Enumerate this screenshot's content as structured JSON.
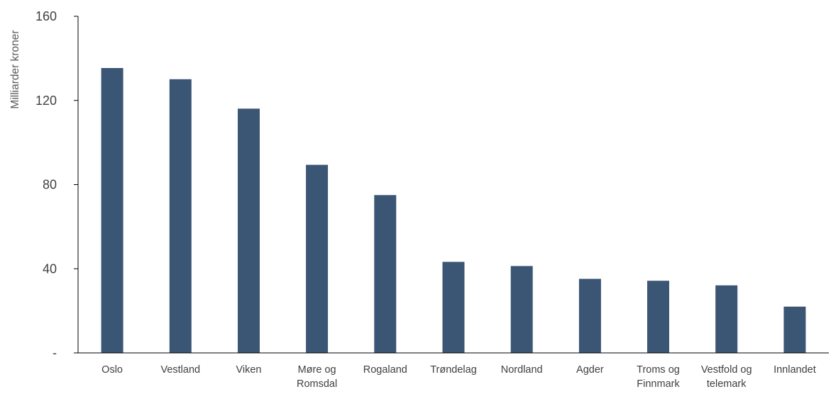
{
  "chart_data": {
    "type": "bar",
    "ylabel": "Milliarder kroner",
    "ylim": [
      0,
      160
    ],
    "yticks": [
      {
        "value": 0,
        "label": "-"
      },
      {
        "value": 40,
        "label": "40"
      },
      {
        "value": 80,
        "label": "80"
      },
      {
        "value": 120,
        "label": "120"
      },
      {
        "value": 160,
        "label": "160"
      }
    ],
    "categories": [
      [
        "Oslo"
      ],
      [
        "Vestland"
      ],
      [
        "Viken"
      ],
      [
        "Møre og",
        "Romsdal"
      ],
      [
        "Rogaland"
      ],
      [
        "Trøndelag"
      ],
      [
        "Nordland"
      ],
      [
        "Agder"
      ],
      [
        "Troms og",
        "Finnmark"
      ],
      [
        "Vestfold og",
        "telemark"
      ],
      [
        "Innlandet"
      ]
    ],
    "values": [
      135.4,
      130.1,
      116.1,
      89.4,
      75.0,
      43.3,
      41.3,
      35.2,
      34.3,
      32.1,
      22.0
    ],
    "grid": false,
    "legend": "none",
    "bar_color": "#3b5575",
    "axis_color": "#000000"
  }
}
